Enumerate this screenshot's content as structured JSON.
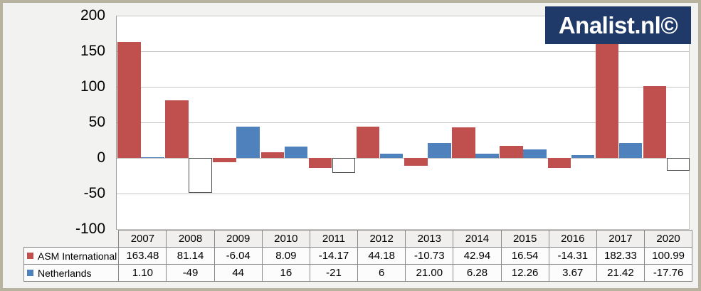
{
  "frame": {
    "border_color": "#b7b39e",
    "background": "#f2f2f0"
  },
  "logo": {
    "text": "Analist.nl©",
    "background": "#1f3a68",
    "text_color": "#ffffff"
  },
  "chart_data": {
    "type": "bar",
    "title": "",
    "categories": [
      "2007",
      "2008",
      "2009",
      "2010",
      "2011",
      "2012",
      "2013",
      "2014",
      "2015",
      "2016",
      "2017",
      "2020"
    ],
    "series": [
      {
        "name": "ASM International",
        "color": "#c0504d",
        "values": [
          163.48,
          81.14,
          -6.04,
          8.09,
          -14.17,
          44.18,
          -10.73,
          42.94,
          16.54,
          -14.31,
          182.33,
          100.99
        ],
        "display": [
          "163.48",
          "81.14",
          "-6.04",
          "8.09",
          "-14.17",
          "44.18",
          "-10.73",
          "42.94",
          "16.54",
          "-14.31",
          "182.33",
          "100.99"
        ]
      },
      {
        "name": "Netherlands",
        "color": "#4f81bd",
        "negative_fill": "#ffffff",
        "negative_border": "#4f4f4f",
        "values": [
          1.1,
          -49,
          44,
          16,
          -21,
          6,
          21.0,
          6.28,
          12.26,
          3.67,
          21.42,
          -17.76
        ],
        "display": [
          "1.10",
          "-49",
          "44",
          "16",
          "-21",
          "6",
          "21.00",
          "6.28",
          "12.26",
          "3.67",
          "21.42",
          "-17.76"
        ]
      }
    ],
    "yticks": [
      200,
      150,
      100,
      50,
      0,
      -50,
      -100
    ],
    "ylim": [
      -100,
      200
    ],
    "grid": true,
    "gridline_color": "#c5c5c5",
    "legend_position": "table-left"
  }
}
